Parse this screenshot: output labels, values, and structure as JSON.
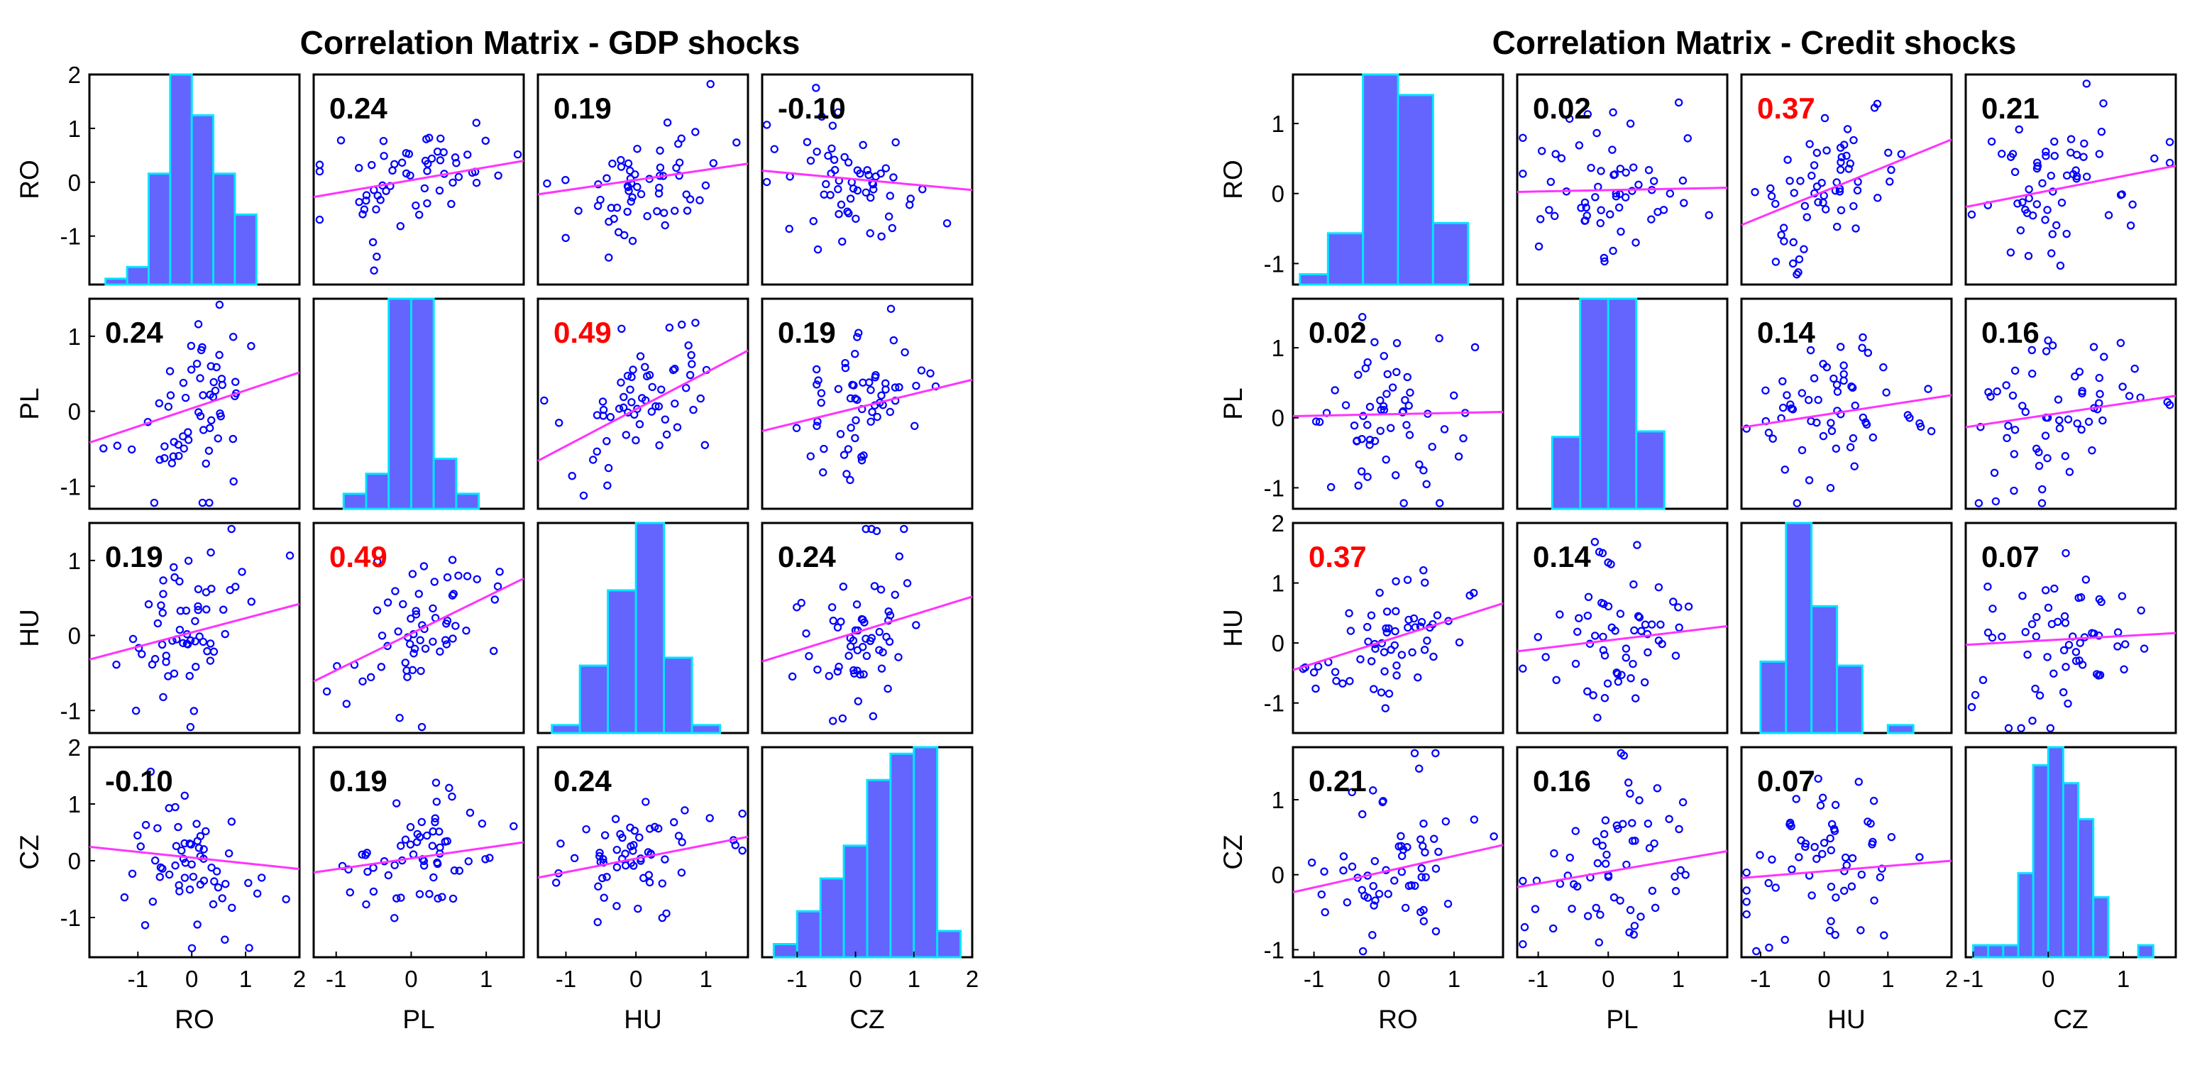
{
  "chart_data": [
    {
      "type": "scatter_matrix",
      "title": "Correlation Matrix - GDP shocks",
      "variables": [
        "RO",
        "PL",
        "HU",
        "CZ"
      ],
      "significant_color": "#ff0000",
      "normal_color": "#000000",
      "correlations": [
        [
          null,
          0.24,
          0.19,
          -0.1
        ],
        [
          0.24,
          null,
          0.49,
          0.19
        ],
        [
          0.19,
          0.49,
          null,
          0.24
        ],
        [
          -0.1,
          0.19,
          0.24,
          null
        ]
      ],
      "correlation_labels": [
        [
          "",
          "0.24",
          "0.19",
          "-0.10"
        ],
        [
          "0.24",
          "",
          "0.49",
          "0.19"
        ],
        [
          "0.19",
          "0.49",
          "",
          "0.24"
        ],
        [
          "-0.10",
          "0.19",
          "0.24",
          ""
        ]
      ],
      "significant": [
        [
          false,
          false,
          false,
          false
        ],
        [
          false,
          false,
          true,
          false
        ],
        [
          false,
          true,
          false,
          false
        ],
        [
          false,
          false,
          false,
          false
        ]
      ],
      "x_ranges": [
        [
          -1.9,
          2.0
        ],
        [
          -1.3,
          1.5
        ],
        [
          -1.4,
          1.6
        ],
        [
          -1.6,
          2.0
        ]
      ],
      "x_ticks": [
        [
          -1,
          0,
          1,
          2
        ],
        [
          -1,
          0,
          1
        ],
        [
          -1,
          0,
          1
        ],
        [
          -1,
          0,
          1,
          2
        ]
      ],
      "x_tick_labels": [
        [
          "-1",
          "0",
          "1",
          "2"
        ],
        [
          "-1",
          "0",
          "1"
        ],
        [
          "-1",
          "0",
          "1"
        ],
        [
          "-1",
          "0",
          "1",
          "2"
        ]
      ],
      "y_ranges": [
        [
          -1.9,
          2.0
        ],
        [
          -1.3,
          1.5
        ],
        [
          -1.3,
          1.5
        ],
        [
          -1.7,
          2.0
        ]
      ],
      "y_ticks": [
        [
          -1,
          0,
          1,
          2
        ],
        [
          -1,
          0,
          1
        ],
        [
          -1,
          0,
          1
        ],
        [
          -1,
          0,
          1,
          2
        ]
      ],
      "y_tick_labels": [
        [
          "-1",
          "0",
          "1",
          "2"
        ],
        [
          "-1",
          "0",
          "1"
        ],
        [
          "-1",
          "0",
          "1"
        ],
        [
          "-1",
          "0",
          "1",
          "2"
        ]
      ],
      "histograms": [
        {
          "edges": [
            -1.6,
            -1.2,
            -0.8,
            -0.4,
            0.0,
            0.4,
            0.8,
            1.2
          ],
          "counts": [
            1,
            3,
            19,
            36,
            29,
            19,
            12
          ]
        },
        {
          "edges": [
            -0.9,
            -0.6,
            -0.3,
            0.0,
            0.3,
            0.6,
            0.9
          ],
          "counts": [
            3,
            7,
            42,
            42,
            10,
            3
          ]
        },
        {
          "edges": [
            -1.2,
            -0.8,
            -0.4,
            0.0,
            0.4,
            0.8,
            1.2
          ],
          "counts": [
            2,
            17,
            36,
            53,
            19,
            2
          ]
        },
        {
          "edges": [
            -1.4,
            -1.0,
            -0.6,
            -0.2,
            0.2,
            0.6,
            1.0,
            1.4,
            1.8
          ],
          "counts": [
            2,
            7,
            12,
            17,
            27,
            31,
            32,
            4
          ]
        }
      ]
    },
    {
      "type": "scatter_matrix",
      "title": "Correlation Matrix - Credit shocks",
      "variables": [
        "RO",
        "PL",
        "HU",
        "CZ"
      ],
      "significant_color": "#ff0000",
      "normal_color": "#000000",
      "correlations": [
        [
          null,
          0.02,
          0.37,
          0.21
        ],
        [
          0.02,
          null,
          0.14,
          0.16
        ],
        [
          0.37,
          0.14,
          null,
          0.07
        ],
        [
          0.21,
          0.16,
          0.07,
          null
        ]
      ],
      "correlation_labels": [
        [
          "",
          "0.02",
          "0.37",
          "0.21"
        ],
        [
          "0.02",
          "",
          "0.14",
          "0.16"
        ],
        [
          "0.37",
          "0.14",
          "",
          "0.07"
        ],
        [
          "0.21",
          "0.16",
          "0.07",
          ""
        ]
      ],
      "significant": [
        [
          false,
          false,
          true,
          false
        ],
        [
          false,
          false,
          false,
          false
        ],
        [
          true,
          false,
          false,
          false
        ],
        [
          false,
          false,
          false,
          false
        ]
      ],
      "x_ranges": [
        [
          -1.3,
          1.7
        ],
        [
          -1.3,
          1.7
        ],
        [
          -1.3,
          2.0
        ],
        [
          -1.1,
          1.7
        ]
      ],
      "x_ticks": [
        [
          -1,
          0,
          1
        ],
        [
          -1,
          0,
          1
        ],
        [
          -1,
          0,
          1,
          2
        ],
        [
          -1,
          0,
          1
        ]
      ],
      "x_tick_labels": [
        [
          "-1",
          "0",
          "1"
        ],
        [
          "-1",
          "0",
          "1"
        ],
        [
          "-1",
          "0",
          "1",
          "2"
        ],
        [
          "-1",
          "0",
          "1"
        ]
      ],
      "y_ranges": [
        [
          -1.3,
          1.7
        ],
        [
          -1.3,
          1.7
        ],
        [
          -1.5,
          2.0
        ],
        [
          -1.1,
          1.7
        ]
      ],
      "y_ticks": [
        [
          -1,
          0,
          1
        ],
        [
          -1,
          0,
          1
        ],
        [
          -1,
          0,
          1,
          2
        ],
        [
          -1,
          0,
          1
        ]
      ],
      "y_tick_labels": [
        [
          "-1",
          "0",
          "1"
        ],
        [
          "-1",
          "0",
          "1"
        ],
        [
          "-1",
          "0",
          "1",
          "2"
        ],
        [
          "-1",
          "0",
          "1"
        ]
      ],
      "histograms": [
        {
          "edges": [
            -1.2,
            -0.8,
            -0.3,
            0.2,
            0.7,
            1.2
          ],
          "counts": [
            2,
            10,
            41,
            37,
            12
          ]
        },
        {
          "edges": [
            -0.8,
            -0.4,
            0.0,
            0.4,
            0.8,
            1.2
          ],
          "counts": [
            13,
            38,
            38,
            14,
            0
          ]
        },
        {
          "edges": [
            -1.0,
            -0.6,
            -0.2,
            0.2,
            0.6,
            1.0,
            1.4,
            1.8
          ],
          "counts": [
            18,
            53,
            32,
            17,
            0,
            2,
            0
          ]
        },
        {
          "edges": [
            -1.0,
            -0.8,
            -0.6,
            -0.4,
            -0.2,
            0.0,
            0.2,
            0.4,
            0.6,
            0.8,
            1.0,
            1.2,
            1.4
          ],
          "counts": [
            2,
            2,
            2,
            14,
            32,
            35,
            29,
            23,
            10,
            0,
            0,
            2
          ]
        }
      ]
    }
  ]
}
